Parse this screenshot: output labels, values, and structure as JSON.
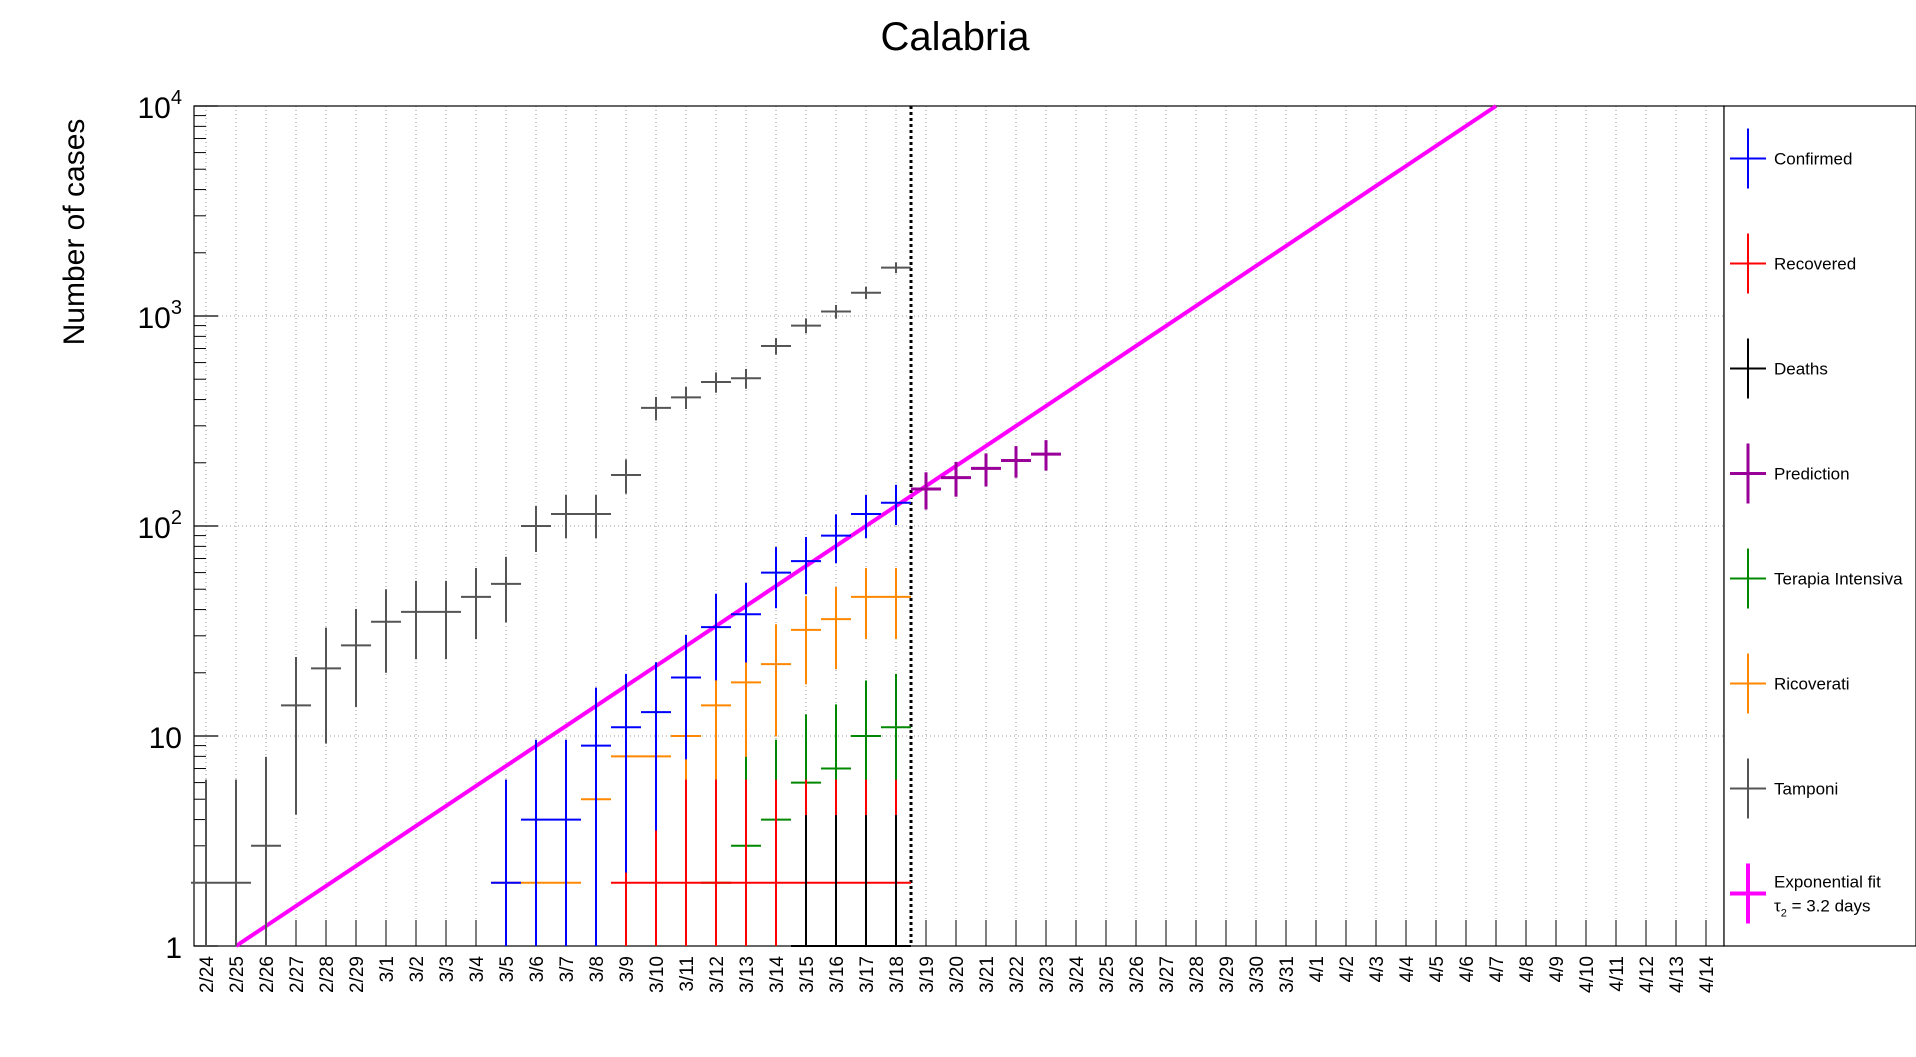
{
  "chart_data": {
    "type": "scatter",
    "title": "Calabria",
    "xlabel": "",
    "ylabel": "Number of cases",
    "yscale": "log",
    "ylim": [
      1,
      10000
    ],
    "grid": true,
    "legend_position": "right",
    "y_ticks": [
      {
        "value": 1,
        "label": "1"
      },
      {
        "value": 10,
        "label": "10"
      },
      {
        "value": 100,
        "label": "10",
        "sup": "2"
      },
      {
        "value": 1000,
        "label": "10",
        "sup": "3"
      },
      {
        "value": 10000,
        "label": "10",
        "sup": "4"
      }
    ],
    "categories": [
      "2/24",
      "2/25",
      "2/26",
      "2/27",
      "2/28",
      "2/29",
      "3/1",
      "3/2",
      "3/3",
      "3/4",
      "3/5",
      "3/6",
      "3/7",
      "3/8",
      "3/9",
      "3/10",
      "3/11",
      "3/12",
      "3/13",
      "3/14",
      "3/15",
      "3/16",
      "3/17",
      "3/18",
      "3/19",
      "3/20",
      "3/21",
      "3/22",
      "3/23",
      "3/24",
      "3/25",
      "3/26",
      "3/27",
      "3/28",
      "3/29",
      "3/30",
      "3/31",
      "4/1",
      "4/2",
      "4/3",
      "4/4",
      "4/5",
      "4/6",
      "4/7",
      "4/8",
      "4/9",
      "4/10",
      "4/11",
      "4/12",
      "4/13",
      "4/14"
    ],
    "vertical_marker": {
      "between": [
        "3/18",
        "3/19"
      ],
      "style": "dotted"
    },
    "series": [
      {
        "name": "Confirmed",
        "color": "#0000ff",
        "points": [
          {
            "x": "3/5",
            "y": 2
          },
          {
            "x": "3/6",
            "y": 4
          },
          {
            "x": "3/7",
            "y": 4
          },
          {
            "x": "3/8",
            "y": 9
          },
          {
            "x": "3/9",
            "y": 11
          },
          {
            "x": "3/10",
            "y": 13
          },
          {
            "x": "3/11",
            "y": 19
          },
          {
            "x": "3/12",
            "y": 33
          },
          {
            "x": "3/13",
            "y": 38
          },
          {
            "x": "3/14",
            "y": 60
          },
          {
            "x": "3/15",
            "y": 68
          },
          {
            "x": "3/16",
            "y": 90
          },
          {
            "x": "3/17",
            "y": 114
          },
          {
            "x": "3/18",
            "y": 129
          }
        ]
      },
      {
        "name": "Recovered",
        "color": "#ff0000",
        "points": [
          {
            "x": "3/9",
            "y": 2
          },
          {
            "x": "3/10",
            "y": 2
          },
          {
            "x": "3/11",
            "y": 2
          },
          {
            "x": "3/12",
            "y": 2
          },
          {
            "x": "3/13",
            "y": 2
          },
          {
            "x": "3/14",
            "y": 2
          },
          {
            "x": "3/15",
            "y": 2
          },
          {
            "x": "3/16",
            "y": 2
          },
          {
            "x": "3/17",
            "y": 2
          },
          {
            "x": "3/18",
            "y": 2
          }
        ]
      },
      {
        "name": "Deaths",
        "color": "#000000",
        "points": [
          {
            "x": "3/15",
            "y": 1
          },
          {
            "x": "3/16",
            "y": 1
          },
          {
            "x": "3/17",
            "y": 1
          },
          {
            "x": "3/18",
            "y": 1
          }
        ]
      },
      {
        "name": "Prediction",
        "color": "#990099",
        "points": [
          {
            "x": "3/19",
            "y": 150
          },
          {
            "x": "3/20",
            "y": 170
          },
          {
            "x": "3/21",
            "y": 188
          },
          {
            "x": "3/22",
            "y": 205
          },
          {
            "x": "3/23",
            "y": 220
          }
        ]
      },
      {
        "name": "Terapia Intensiva",
        "color": "#008800",
        "points": [
          {
            "x": "3/12",
            "y": 2
          },
          {
            "x": "3/13",
            "y": 3
          },
          {
            "x": "3/14",
            "y": 4
          },
          {
            "x": "3/15",
            "y": 6
          },
          {
            "x": "3/16",
            "y": 7
          },
          {
            "x": "3/17",
            "y": 10
          },
          {
            "x": "3/18",
            "y": 11
          }
        ]
      },
      {
        "name": "Ricoverati",
        "color": "#ff8800",
        "points": [
          {
            "x": "3/5",
            "y": 2
          },
          {
            "x": "3/6",
            "y": 2
          },
          {
            "x": "3/7",
            "y": 2
          },
          {
            "x": "3/8",
            "y": 5
          },
          {
            "x": "3/9",
            "y": 8
          },
          {
            "x": "3/10",
            "y": 8
          },
          {
            "x": "3/11",
            "y": 10
          },
          {
            "x": "3/12",
            "y": 14
          },
          {
            "x": "3/13",
            "y": 18
          },
          {
            "x": "3/14",
            "y": 22
          },
          {
            "x": "3/15",
            "y": 32
          },
          {
            "x": "3/16",
            "y": 36
          },
          {
            "x": "3/17",
            "y": 46
          },
          {
            "x": "3/18",
            "y": 46
          }
        ]
      },
      {
        "name": "Tamponi",
        "color": "#555555",
        "points": [
          {
            "x": "2/24",
            "y": 2
          },
          {
            "x": "2/25",
            "y": 2
          },
          {
            "x": "2/26",
            "y": 3
          },
          {
            "x": "2/27",
            "y": 14
          },
          {
            "x": "2/28",
            "y": 21
          },
          {
            "x": "2/29",
            "y": 27
          },
          {
            "x": "3/1",
            "y": 35
          },
          {
            "x": "3/2",
            "y": 39
          },
          {
            "x": "3/3",
            "y": 39
          },
          {
            "x": "3/4",
            "y": 46
          },
          {
            "x": "3/5",
            "y": 53
          },
          {
            "x": "3/6",
            "y": 100
          },
          {
            "x": "3/7",
            "y": 114
          },
          {
            "x": "3/8",
            "y": 114
          },
          {
            "x": "3/9",
            "y": 175
          },
          {
            "x": "3/10",
            "y": 365
          },
          {
            "x": "3/11",
            "y": 410
          },
          {
            "x": "3/12",
            "y": 485
          },
          {
            "x": "3/13",
            "y": 505
          },
          {
            "x": "3/14",
            "y": 720
          },
          {
            "x": "3/15",
            "y": 900
          },
          {
            "x": "3/16",
            "y": 1050
          },
          {
            "x": "3/17",
            "y": 1290
          },
          {
            "x": "3/18",
            "y": 1700
          }
        ]
      }
    ],
    "fit": {
      "name": "Exponential fit",
      "label": "= 3.2 days",
      "symbol": "τ",
      "symbol_sub": "2",
      "color": "#ff00ff",
      "points": [
        {
          "x": "2/25",
          "y": 1
        },
        {
          "x": "4/7",
          "y": 10000
        }
      ]
    }
  }
}
